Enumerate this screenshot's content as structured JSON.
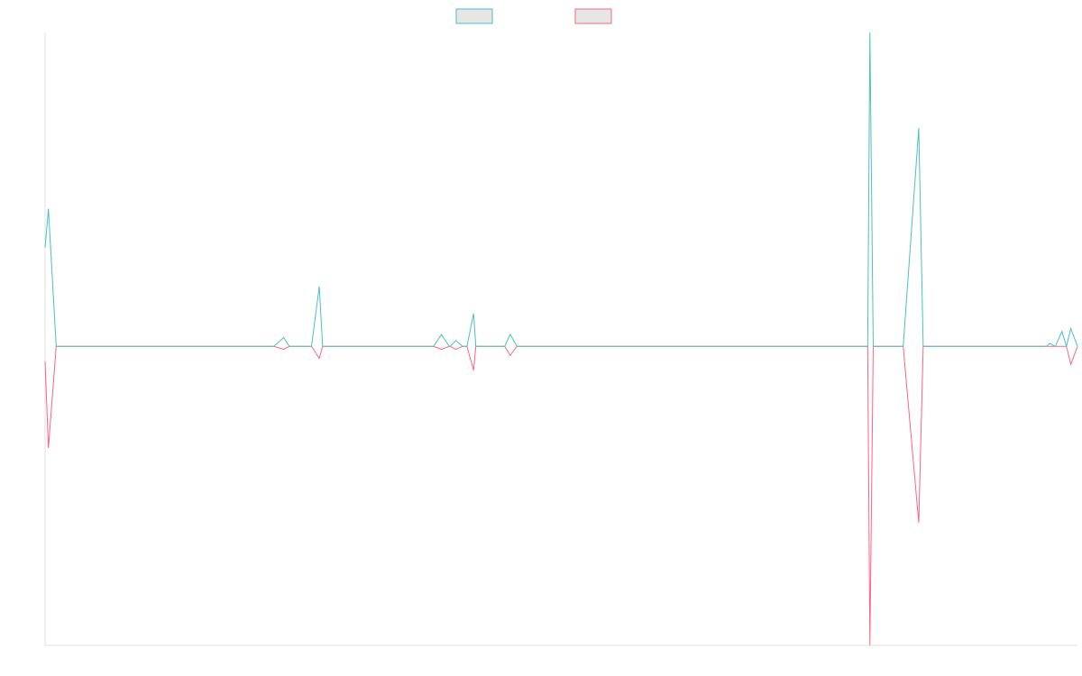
{
  "chart_data": {
    "type": "line",
    "title": "",
    "xlabel": "",
    "ylabel": "",
    "grid": false,
    "legend": {
      "placement": "top-center"
    },
    "ylim": [
      -100,
      105
    ],
    "x": [
      0,
      0.3,
      1,
      1.4,
      17,
      18.1,
      19,
      19.7,
      20.6,
      21.5,
      22,
      23,
      24,
      24.7,
      25,
      25.4,
      26,
      35,
      35.7,
      36.4,
      36.5,
      37,
      37.6,
      38,
      38.6,
      38.8,
      39.3,
      40,
      41.4,
      41.9,
      42.5,
      71,
      74.1,
      74.3,
      74.6,
      77.3,
      78.7,
      79.1,
      80,
      90.2,
      90.5,
      91,
      91.6,
      92,
      92.4,
      93
    ],
    "series": [
      {
        "color": "#4bc0c0",
        "values": [
          33,
          46,
          0,
          0,
          0,
          0,
          0,
          0,
          0,
          3,
          0,
          0,
          0,
          20,
          0,
          0,
          0,
          0,
          4,
          0,
          0,
          2,
          0,
          0,
          11,
          0,
          0,
          0,
          0,
          4,
          0,
          0,
          0,
          105,
          0,
          0,
          73,
          0,
          0,
          0,
          1,
          0,
          5,
          0,
          6,
          0
        ]
      },
      {
        "color": "#ff6384",
        "values": [
          -5,
          -34,
          0,
          0,
          0,
          0,
          0,
          0,
          0,
          -1,
          0,
          0,
          0,
          -4,
          0,
          0,
          0,
          0,
          -1,
          0,
          0,
          -1,
          0,
          0,
          -8,
          0,
          0,
          0,
          0,
          -3,
          0,
          0,
          0,
          -100,
          0,
          0,
          -59,
          0,
          0,
          0,
          0,
          0,
          0,
          0,
          -6,
          0
        ]
      }
    ]
  }
}
